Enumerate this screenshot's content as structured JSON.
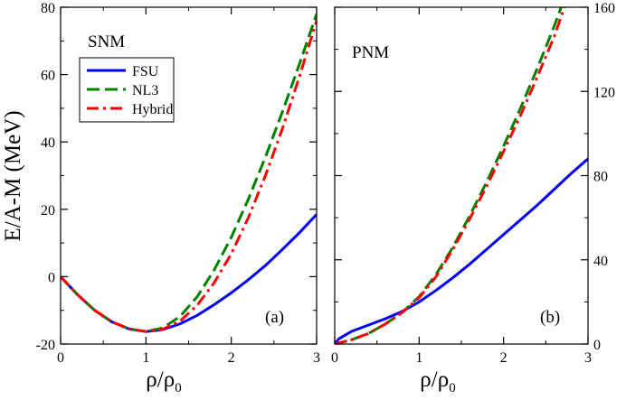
{
  "chart_data": [
    {
      "type": "line",
      "panel": "a",
      "title": "SNM",
      "panel_label": "(a)",
      "xlabel_main": "ρ/ρ",
      "xlabel_sub": "0",
      "ylabel": "E/A-M (MeV)",
      "xlim": [
        0,
        3
      ],
      "ylim": [
        -20,
        80
      ],
      "xticks": [
        0,
        1,
        2,
        3
      ],
      "yticks": [
        -20,
        0,
        20,
        40,
        60,
        80
      ],
      "legend": {
        "position": "top-left",
        "entries": [
          "FSU",
          "NL3",
          "Hybrid"
        ]
      },
      "series": [
        {
          "name": "FSU",
          "color": "#0000ff",
          "dash": "solid",
          "x": [
            0,
            0.2,
            0.4,
            0.6,
            0.8,
            1.0,
            1.2,
            1.4,
            1.6,
            1.8,
            2.0,
            2.2,
            2.4,
            2.6,
            2.8,
            3.0
          ],
          "y": [
            0,
            -5.4,
            -10.0,
            -13.4,
            -15.5,
            -16.3,
            -15.7,
            -14.0,
            -11.5,
            -8.3,
            -4.8,
            -0.9,
            3.3,
            8.1,
            13.1,
            18.5
          ]
        },
        {
          "name": "NL3",
          "color": "#008000",
          "dash": "long-dash",
          "x": [
            0,
            0.2,
            0.4,
            0.6,
            0.8,
            1.0,
            1.2,
            1.4,
            1.6,
            1.8,
            2.0,
            2.2,
            2.4,
            2.6,
            2.8,
            3.0
          ],
          "y": [
            0,
            -5.4,
            -10.0,
            -13.4,
            -15.5,
            -16.3,
            -15.2,
            -11.8,
            -6.0,
            2.0,
            11.7,
            23.0,
            35.5,
            49.0,
            63.2,
            78.0
          ]
        },
        {
          "name": "Hybrid",
          "color": "#ff0000",
          "dash": "dash-dot",
          "x": [
            0,
            0.2,
            0.4,
            0.6,
            0.8,
            1.0,
            1.2,
            1.4,
            1.6,
            1.8,
            2.0,
            2.2,
            2.4,
            2.6,
            2.8,
            3.0
          ],
          "y": [
            0,
            -5.4,
            -10.0,
            -13.4,
            -15.5,
            -16.3,
            -15.6,
            -13.2,
            -8.5,
            -1.8,
            6.8,
            17.5,
            30.0,
            44.0,
            59.5,
            76.0
          ]
        }
      ]
    },
    {
      "type": "line",
      "panel": "b",
      "title": "PNM",
      "panel_label": "(b)",
      "xlabel_main": "ρ/ρ",
      "xlabel_sub": "0",
      "xlim": [
        0,
        3
      ],
      "ylim": [
        0,
        160
      ],
      "xticks": [
        0,
        1,
        2,
        3
      ],
      "yticks": [
        0,
        40,
        80,
        120,
        160
      ],
      "y_axis_side": "right",
      "series": [
        {
          "name": "FSU",
          "color": "#0000ff",
          "dash": "solid",
          "x": [
            0,
            0.05,
            0.2,
            0.4,
            0.6,
            0.8,
            1.0,
            1.2,
            1.4,
            1.6,
            1.8,
            2.0,
            2.2,
            2.4,
            2.6,
            2.8,
            3.0
          ],
          "y": [
            0,
            2.5,
            6.0,
            9.0,
            12.0,
            15.5,
            20.0,
            25.5,
            31.5,
            38.0,
            45.0,
            52.0,
            59.0,
            66.0,
            73.5,
            81.0,
            88.0
          ]
        },
        {
          "name": "NL3",
          "color": "#008000",
          "dash": "long-dash",
          "x": [
            0,
            0.2,
            0.4,
            0.6,
            0.8,
            1.0,
            1.2,
            1.4,
            1.6,
            1.8,
            2.0,
            2.2,
            2.4,
            2.6,
            2.7
          ],
          "y": [
            0,
            2.0,
            5.0,
            9.5,
            15.0,
            22.5,
            33.0,
            46.0,
            61.0,
            77.0,
            94.0,
            112.0,
            131.0,
            151.0,
            162.0
          ]
        },
        {
          "name": "Hybrid",
          "color": "#ff0000",
          "dash": "dash-dot",
          "x": [
            0,
            0.2,
            0.4,
            0.6,
            0.8,
            1.0,
            1.2,
            1.4,
            1.6,
            1.8,
            2.0,
            2.2,
            2.4,
            2.6,
            2.72
          ],
          "y": [
            0,
            2.0,
            5.0,
            9.5,
            15.0,
            22.0,
            32.0,
            45.0,
            59.5,
            75.0,
            91.5,
            108.5,
            127.0,
            146.0,
            160.0
          ]
        }
      ]
    }
  ]
}
